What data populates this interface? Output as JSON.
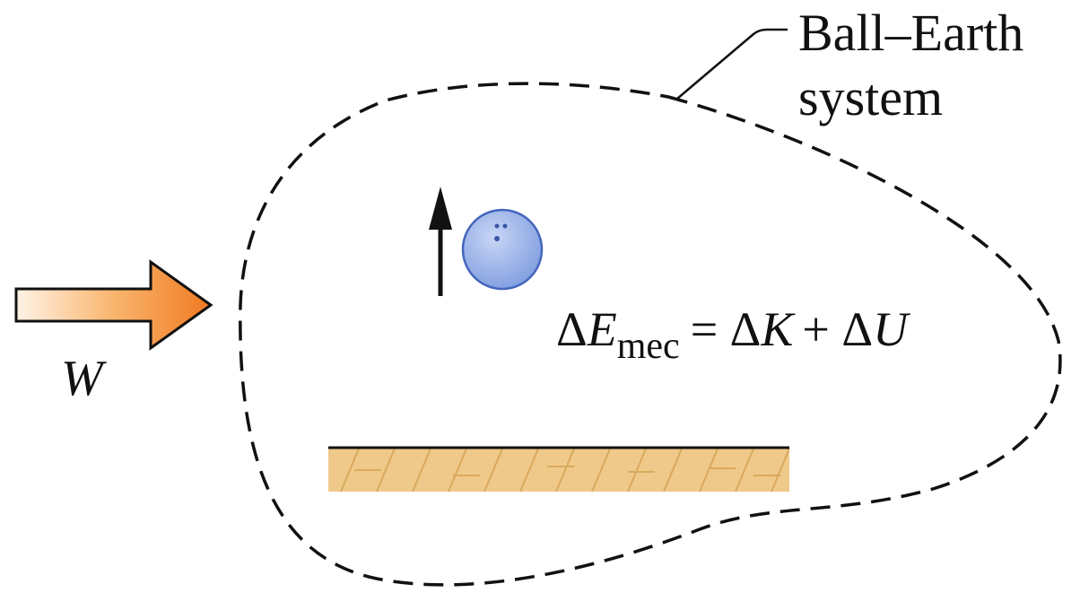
{
  "system_label": {
    "line1": "Ball–Earth",
    "line2": "system"
  },
  "work_label": "W",
  "equation": [
    "Δ",
    "E",
    "mec",
    "= Δ",
    "K",
    "+ Δ",
    "U"
  ]
}
